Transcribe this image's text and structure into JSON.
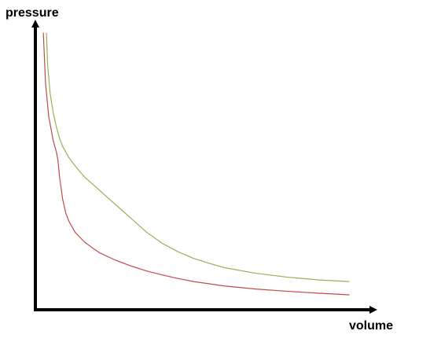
{
  "chart_data": {
    "type": "line",
    "title": "",
    "xlabel": "volume",
    "ylabel": "pressure",
    "grid": false,
    "legend": "none",
    "axis_color": "#000000",
    "xlim": [
      0,
      100
    ],
    "ylim": [
      0,
      100
    ],
    "series": [
      {
        "color": "#9aae5a",
        "x": [
          2.8,
          3.2,
          4,
          5,
          6,
          7,
          8,
          10,
          12,
          15,
          18,
          21,
          25,
          30,
          35,
          40,
          45,
          50,
          55,
          60,
          70,
          80,
          90,
          100
        ],
        "y": [
          100,
          88,
          78,
          71,
          66,
          62,
          59,
          55,
          52,
          48,
          45,
          42,
          38,
          33,
          28,
          24,
          21,
          18.6,
          16.8,
          15.2,
          13.2,
          11.8,
          10.8,
          10.2
        ]
      },
      {
        "color": "#c04a4a",
        "x": [
          1.8,
          2.5,
          3.5,
          5,
          6,
          6.5,
          7,
          8,
          9,
          10,
          12,
          15,
          18,
          20,
          25,
          30,
          35,
          40,
          45,
          50,
          60,
          70,
          80,
          90,
          100
        ],
        "y": [
          100,
          82,
          70,
          61,
          57,
          54,
          48,
          40,
          35,
          32,
          28,
          24.5,
          22,
          20.5,
          17.9,
          15.8,
          14,
          12.6,
          11.3,
          10.2,
          8.6,
          7.5,
          6.7,
          6,
          5.4
        ]
      }
    ]
  }
}
